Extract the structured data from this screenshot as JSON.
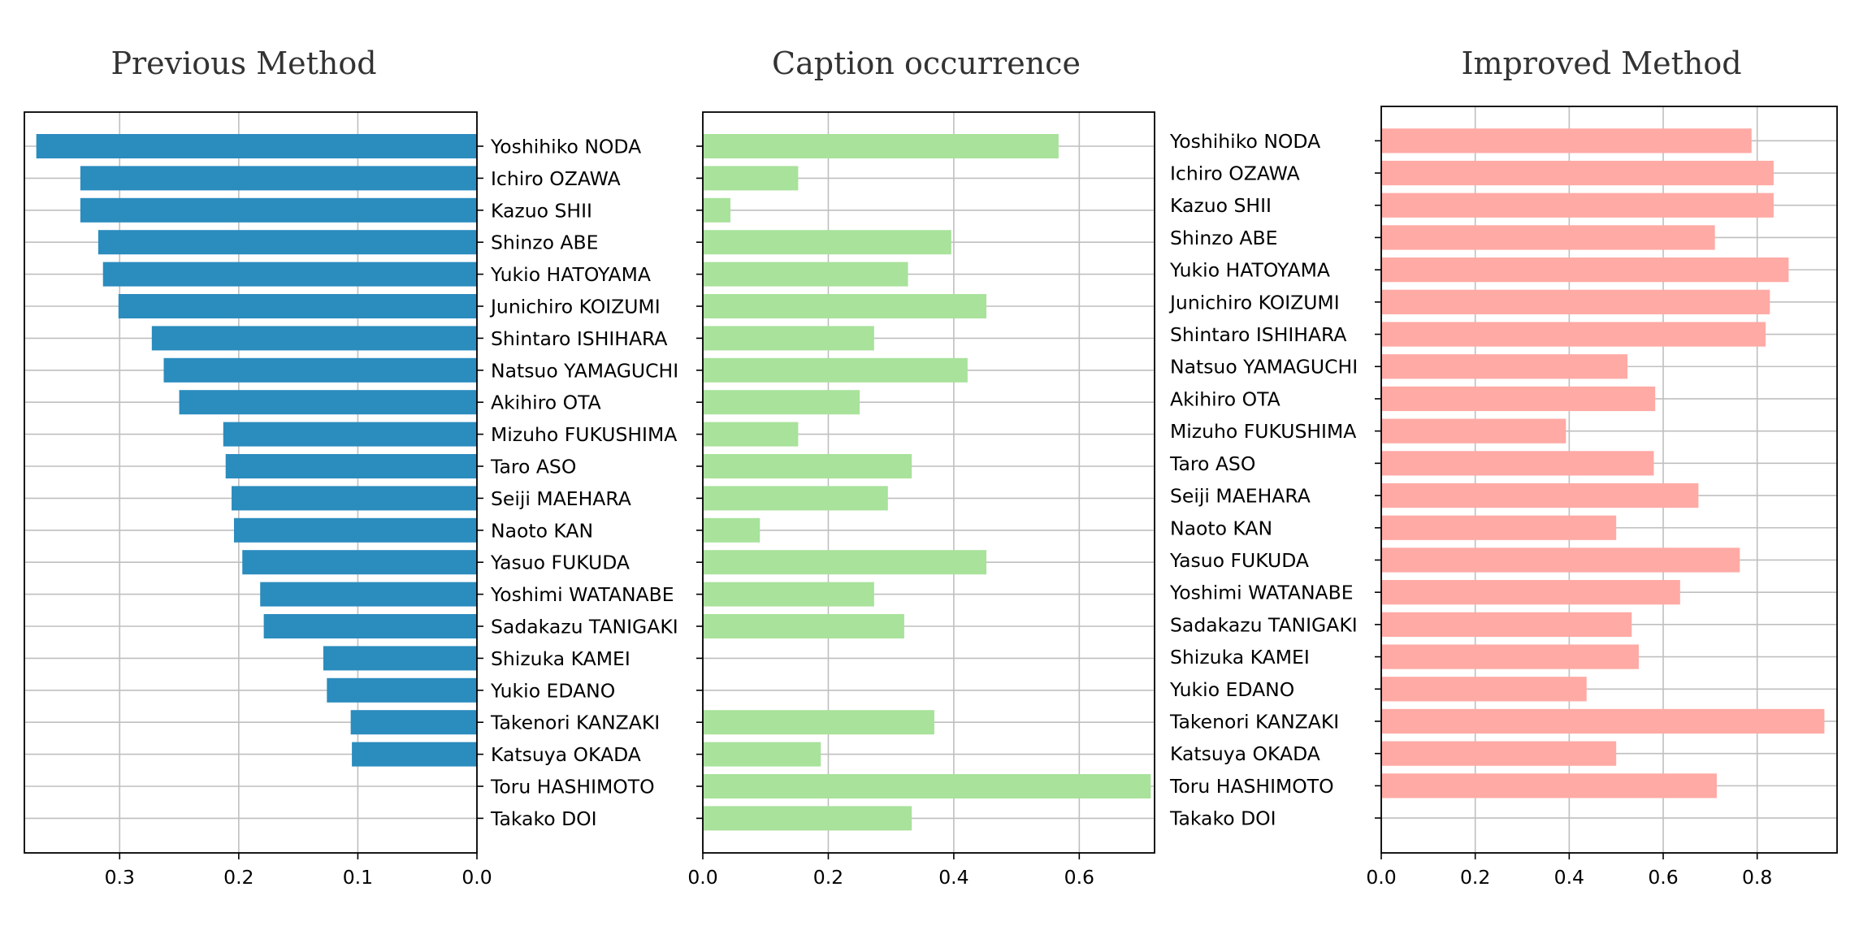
{
  "chart_data": [
    {
      "type": "bar",
      "orientation": "horizontal",
      "title": "Previous Method",
      "color": "#2b8cbe",
      "inverted_x": true,
      "xlim": [
        0.38,
        0
      ],
      "xticks": [
        0.3,
        0.2,
        0.1,
        0.0
      ],
      "xtick_labels": [
        "0.3",
        "0.2",
        "0.1",
        "0.0"
      ],
      "grid": true,
      "categories": [
        "Yoshihiko NODA",
        "Ichiro OZAWA",
        "Kazuo SHII",
        "Shinzo ABE",
        "Yukio HATOYAMA",
        "Junichiro KOIZUMI",
        "Shintaro ISHIHARA",
        "Natsuo YAMAGUCHI",
        "Akihiro OTA",
        "Mizuho FUKUSHIMA",
        "Taro ASO",
        "Seiji MAEHARA",
        "Naoto KAN",
        "Yasuo FUKUDA",
        "Yoshimi WATANABE",
        "Sadakazu TANIGAKI",
        "Shizuka KAMEI",
        "Yukio EDANO",
        "Takenori KANZAKI",
        "Katsuya OKADA",
        "Toru HASHIMOTO",
        "Takako DOI"
      ],
      "values": [
        0.37,
        0.333,
        0.333,
        0.318,
        0.314,
        0.301,
        0.273,
        0.263,
        0.25,
        0.213,
        0.211,
        0.206,
        0.204,
        0.197,
        0.182,
        0.179,
        0.129,
        0.126,
        0.106,
        0.105,
        0.0,
        0.0
      ]
    },
    {
      "type": "bar",
      "orientation": "horizontal",
      "title": "Caption occurrence",
      "color": "#a8e29b",
      "xlim": [
        0,
        0.72
      ],
      "xticks": [
        0.0,
        0.2,
        0.4,
        0.6
      ],
      "xtick_labels": [
        "0.0",
        "0.2",
        "0.4",
        "0.6"
      ],
      "grid": true,
      "categories": [
        "Yoshihiko NODA",
        "Ichiro OZAWA",
        "Kazuo SHII",
        "Shinzo ABE",
        "Yukio HATOYAMA",
        "Junichiro KOIZUMI",
        "Shintaro ISHIHARA",
        "Natsuo YAMAGUCHI",
        "Akihiro OTA",
        "Mizuho FUKUSHIMA",
        "Taro ASO",
        "Seiji MAEHARA",
        "Naoto KAN",
        "Yasuo FUKUDA",
        "Yoshimi WATANABE",
        "Sadakazu TANIGAKI",
        "Shizuka KAMEI",
        "Yukio EDANO",
        "Takenori KANZAKI",
        "Katsuya OKADA",
        "Toru HASHIMOTO",
        "Takako DOI"
      ],
      "values": [
        0.567,
        0.152,
        0.044,
        0.396,
        0.327,
        0.452,
        0.273,
        0.422,
        0.25,
        0.152,
        0.333,
        0.295,
        0.091,
        0.452,
        0.273,
        0.321,
        0.0,
        0.0,
        0.369,
        0.188,
        0.714,
        0.333
      ]
    },
    {
      "type": "bar",
      "orientation": "horizontal",
      "title": "Improved Method",
      "color": "#ffaaa5",
      "xlim": [
        0,
        0.97
      ],
      "xticks": [
        0.0,
        0.2,
        0.4,
        0.6,
        0.8
      ],
      "xtick_labels": [
        "0.0",
        "0.2",
        "0.4",
        "0.6",
        "0.8"
      ],
      "grid": true,
      "categories": [
        "Yoshihiko NODA",
        "Ichiro OZAWA",
        "Kazuo SHII",
        "Shinzo ABE",
        "Yukio HATOYAMA",
        "Junichiro KOIZUMI",
        "Shintaro ISHIHARA",
        "Natsuo YAMAGUCHI",
        "Akihiro OTA",
        "Mizuho FUKUSHIMA",
        "Taro ASO",
        "Seiji MAEHARA",
        "Naoto KAN",
        "Yasuo FUKUDA",
        "Yoshimi WATANABE",
        "Sadakazu TANIGAKI",
        "Shizuka KAMEI",
        "Yukio EDANO",
        "Takenori KANZAKI",
        "Katsuya OKADA",
        "Toru HASHIMOTO",
        "Takako DOI"
      ],
      "values": [
        0.788,
        0.835,
        0.835,
        0.71,
        0.867,
        0.827,
        0.818,
        0.524,
        0.583,
        0.393,
        0.58,
        0.675,
        0.5,
        0.763,
        0.636,
        0.533,
        0.548,
        0.437,
        0.943,
        0.5,
        0.714,
        0.0
      ]
    }
  ]
}
